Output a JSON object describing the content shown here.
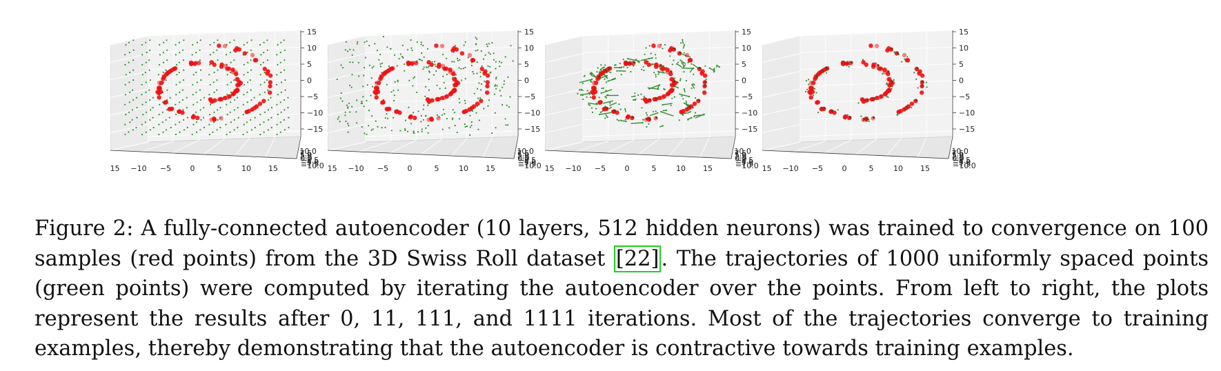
{
  "chart_data": [
    {
      "type": "scatter",
      "title": "",
      "iterations": 0,
      "x_ticks": [
        "−15",
        "−10",
        "−5",
        "0",
        "5",
        "10",
        "15"
      ],
      "y_ticks": [
        "−10.0",
        "−7.5",
        "−5.0",
        "−2.5",
        "0.0",
        "2.5",
        "5.0",
        "7.5",
        "10.0"
      ],
      "z_ticks": [
        "15",
        "10",
        "5",
        "0",
        "−5",
        "−10",
        "−15"
      ],
      "xlim": [
        -15,
        15
      ],
      "zlim": [
        -15,
        15
      ],
      "series": [
        {
          "name": "red points",
          "color": "#ee1111",
          "count": 100
        },
        {
          "name": "green points",
          "color": "#2f8f2f",
          "count": 1000
        }
      ]
    },
    {
      "type": "scatter",
      "title": "",
      "iterations": 11,
      "x_ticks": [
        "−15",
        "−10",
        "−5",
        "0",
        "5",
        "10",
        "15"
      ],
      "y_ticks": [
        "−10.0",
        "−7.5",
        "−5.0",
        "−2.5",
        "0.0",
        "2.5",
        "5.0",
        "7.5",
        "10.0"
      ],
      "z_ticks": [
        "15",
        "10",
        "5",
        "0",
        "−5",
        "−10",
        "−15"
      ],
      "xlim": [
        -15,
        15
      ],
      "zlim": [
        -15,
        15
      ],
      "series": [
        {
          "name": "red points",
          "color": "#ee1111",
          "count": 100
        },
        {
          "name": "green points",
          "color": "#2f8f2f",
          "count": 1000
        }
      ]
    },
    {
      "type": "scatter",
      "title": "",
      "iterations": 111,
      "x_ticks": [
        "−15",
        "−10",
        "−5",
        "0",
        "5",
        "10",
        "15"
      ],
      "y_ticks": [
        "−10.0",
        "−7.5",
        "−5.0",
        "−2.5",
        "0.0",
        "2.5",
        "5.0",
        "7.5",
        "10.0"
      ],
      "z_ticks": [
        "15",
        "10",
        "5",
        "0",
        "−5",
        "−10",
        "−15"
      ],
      "xlim": [
        -15,
        15
      ],
      "zlim": [
        -15,
        15
      ],
      "series": [
        {
          "name": "red points",
          "color": "#ee1111",
          "count": 100
        },
        {
          "name": "green points",
          "color": "#2f8f2f",
          "count": 1000
        }
      ]
    },
    {
      "type": "scatter",
      "title": "",
      "iterations": 1111,
      "x_ticks": [
        "−15",
        "−10",
        "−5",
        "0",
        "5",
        "10",
        "15"
      ],
      "y_ticks": [
        "−10.0",
        "−7.5",
        "−5.0",
        "−2.5",
        "0.0",
        "2.5",
        "5.0",
        "7.5",
        "10.0"
      ],
      "z_ticks": [
        "15",
        "10",
        "5",
        "0",
        "−5",
        "−10",
        "−15"
      ],
      "xlim": [
        -15,
        15
      ],
      "zlim": [
        -15,
        15
      ],
      "series": [
        {
          "name": "red points",
          "color": "#ee1111",
          "count": 100
        },
        {
          "name": "green points",
          "color": "#2f8f2f",
          "count": 1000
        }
      ]
    }
  ],
  "caption": {
    "before_cite": "Figure 2: A fully-connected autoencoder (10 layers, 512 hidden neurons) was trained to convergence on 100 samples (red points) from the 3D Swiss Roll dataset ",
    "cite": "[22]",
    "after_cite": ". The trajectories of 1000 uniformly spaced points (green points) were computed by iterating the autoencoder over the points. From left to right, the plots represent the results after 0, 11, 111, and 1111 iterations. Most of the trajectories converge to training examples, thereby demonstrating that the autoencoder is contractive towards training examples."
  }
}
